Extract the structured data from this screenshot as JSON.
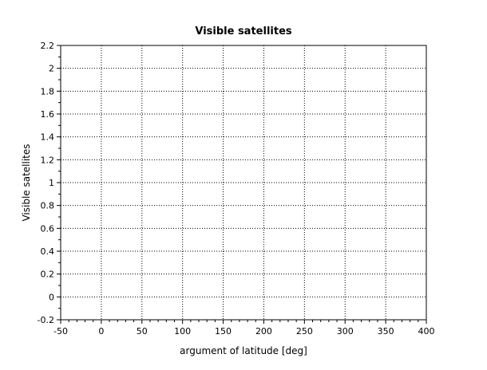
{
  "chart_data": {
    "type": "scatter",
    "title": "Visible satellites",
    "xlabel": "argument of latitude [deg]",
    "ylabel": "Visible satellites",
    "xlim": [
      -50,
      400
    ],
    "ylim": [
      -0.2,
      2.2
    ],
    "x_ticks": [
      -50,
      0,
      50,
      100,
      150,
      200,
      250,
      300,
      350,
      400
    ],
    "x_tick_labels": [
      "-50",
      "0",
      "50",
      "100",
      "150",
      "200",
      "250",
      "300",
      "350",
      "400"
    ],
    "y_ticks": [
      -0.2,
      0,
      0.2,
      0.4,
      0.6,
      0.8,
      1,
      1.2,
      1.4,
      1.6,
      1.8,
      2,
      2.2
    ],
    "y_tick_labels": [
      "-0.2",
      "0",
      "0.2",
      "0.4",
      "0.6",
      "0.8",
      "1",
      "1.2",
      "1.4",
      "1.6",
      "1.8",
      "2",
      "2.2"
    ],
    "grid": true,
    "grid_style": "dotted",
    "series": [],
    "colors": {
      "background": "#ffffff",
      "axis": "#000000",
      "grid": "#000000"
    }
  }
}
